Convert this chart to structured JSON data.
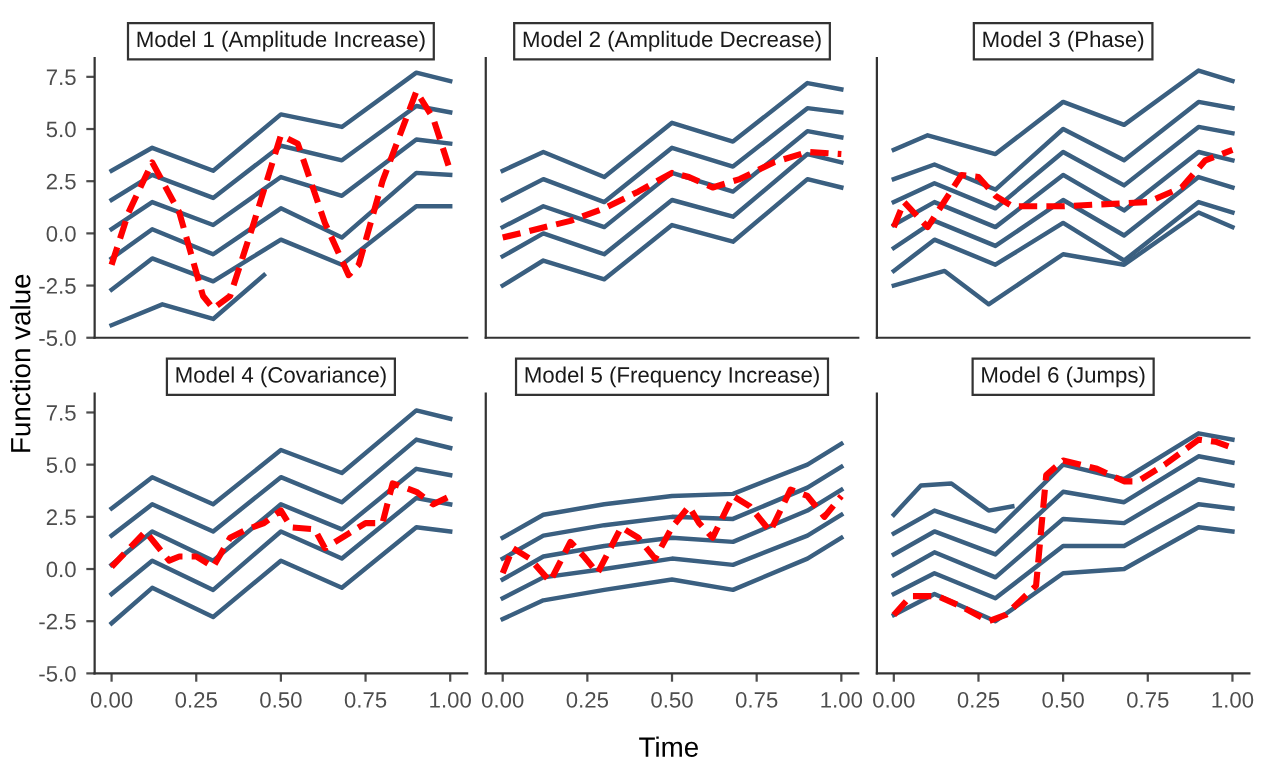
{
  "chart_data": [
    {
      "type": "line",
      "title": "Model 1 (Amplitude Increase)",
      "ylabel": "Function value",
      "tick_labels": "y",
      "x": [
        0,
        0.12,
        0.3,
        0.5,
        0.68,
        0.9,
        1.0
      ],
      "xlim": [
        -0.05,
        1.05
      ],
      "ylim": [
        -5.0,
        8.4
      ],
      "yticks": [
        {
          "value": -5,
          "label": "-5.0"
        },
        {
          "value": -2.5,
          "label": "-2.5"
        },
        {
          "value": 0,
          "label": "0.0"
        },
        {
          "value": 2.5,
          "label": "2.5"
        },
        {
          "value": 5,
          "label": "5.0"
        },
        {
          "value": 7.5,
          "label": "7.5"
        }
      ],
      "grid": false,
      "legend": false,
      "series": [
        {
          "color": "#3a5f80",
          "values": [
            3.0,
            4.1,
            3.0,
            5.7,
            5.1,
            7.7,
            7.3
          ]
        },
        {
          "color": "#3a5f80",
          "values": [
            1.6,
            2.8,
            1.7,
            4.2,
            3.5,
            6.1,
            5.8
          ]
        },
        {
          "color": "#3a5f80",
          "values": [
            0.2,
            1.5,
            0.4,
            2.7,
            1.8,
            4.5,
            4.3
          ]
        },
        {
          "color": "#3a5f80",
          "values": [
            -1.2,
            0.2,
            -1.0,
            1.2,
            -0.2,
            2.9,
            2.8
          ]
        },
        {
          "color": "#3a5f80",
          "values": [
            -2.7,
            -1.2,
            -2.3,
            -0.3,
            -1.5,
            1.3,
            1.3
          ]
        },
        {
          "color": "#3a5f80",
          "x": [
            0,
            0.15,
            0.3,
            0.45
          ],
          "values": [
            -4.4,
            -3.4,
            -4.1,
            -2.0
          ]
        },
        {
          "color": "#ff0000",
          "line_style": "dashed",
          "x": [
            0,
            0.05,
            0.12,
            0.2,
            0.27,
            0.3,
            0.35,
            0.42,
            0.5,
            0.55,
            0.63,
            0.7,
            0.73,
            0.8,
            0.9,
            0.95,
            1.0
          ],
          "values": [
            -1.5,
            1.0,
            3.4,
            1.0,
            -3.0,
            -3.6,
            -3.0,
            0.5,
            4.7,
            4.3,
            0.5,
            -2.0,
            -1.5,
            2.5,
            6.8,
            5.5,
            3.0
          ]
        }
      ]
    },
    {
      "type": "line",
      "title": "Model 2 (Amplitude Decrease)",
      "tick_labels": false,
      "x": [
        0,
        0.12,
        0.3,
        0.5,
        0.68,
        0.9,
        1.0
      ],
      "xlim": [
        -0.05,
        1.05
      ],
      "ylim": [
        -5.0,
        8.4
      ],
      "grid": false,
      "legend": false,
      "series": [
        {
          "color": "#3a5f80",
          "values": [
            3.0,
            3.9,
            2.7,
            5.3,
            4.4,
            7.2,
            6.9
          ]
        },
        {
          "color": "#3a5f80",
          "values": [
            1.6,
            2.6,
            1.5,
            4.1,
            3.2,
            6.0,
            5.8
          ]
        },
        {
          "color": "#3a5f80",
          "values": [
            0.3,
            1.3,
            0.3,
            2.9,
            2.0,
            4.9,
            4.6
          ]
        },
        {
          "color": "#3a5f80",
          "values": [
            -1.1,
            0.0,
            -1.0,
            1.6,
            0.8,
            3.8,
            3.4
          ]
        },
        {
          "color": "#3a5f80",
          "values": [
            -2.5,
            -1.3,
            -2.2,
            0.4,
            -0.4,
            2.6,
            2.2
          ]
        },
        {
          "color": "#ff0000",
          "line_style": "dashed",
          "x": [
            0,
            0.2,
            0.3,
            0.4,
            0.5,
            0.55,
            0.62,
            0.7,
            0.8,
            0.9,
            1.0
          ],
          "values": [
            -0.2,
            0.6,
            1.2,
            2.0,
            2.9,
            2.7,
            2.2,
            2.6,
            3.4,
            3.9,
            3.8
          ]
        }
      ]
    },
    {
      "type": "line",
      "title": "Model 3 (Phase)",
      "tick_labels": false,
      "x": [
        0,
        0.12,
        0.3,
        0.5,
        0.68,
        0.9,
        1.0
      ],
      "xlim": [
        -0.05,
        1.05
      ],
      "ylim": [
        -5.0,
        8.4
      ],
      "grid": false,
      "legend": false,
      "series": [
        {
          "color": "#3a5f80",
          "values": [
            2.6,
            3.3,
            2.1,
            5.0,
            3.5,
            6.3,
            6.0
          ]
        },
        {
          "color": "#3a5f80",
          "values": [
            1.5,
            2.4,
            1.2,
            3.9,
            2.3,
            5.1,
            4.8
          ]
        },
        {
          "color": "#3a5f80",
          "values": [
            0.4,
            1.5,
            0.3,
            2.8,
            1.1,
            3.9,
            3.5
          ]
        },
        {
          "color": "#3a5f80",
          "values": [
            -0.7,
            0.6,
            -0.6,
            1.6,
            -0.1,
            2.7,
            2.2
          ]
        },
        {
          "color": "#3a5f80",
          "values": [
            -1.8,
            -0.3,
            -1.5,
            0.5,
            -1.3,
            1.5,
            1.0
          ]
        },
        {
          "color": "#3a5f80",
          "x": [
            0,
            0.1,
            0.3,
            0.5,
            0.68,
            0.9,
            1.0
          ],
          "values": [
            4.0,
            4.7,
            3.8,
            6.3,
            5.2,
            7.8,
            7.3
          ]
        },
        {
          "color": "#3a5f80",
          "x": [
            0,
            0.15,
            0.28,
            0.5,
            0.68,
            0.9,
            1.0
          ],
          "values": [
            -2.5,
            -1.8,
            -3.4,
            -1.0,
            -1.5,
            1.0,
            0.3
          ]
        },
        {
          "color": "#ff0000",
          "line_style": "dashed",
          "x": [
            0,
            0.03,
            0.1,
            0.2,
            0.25,
            0.3,
            0.35,
            0.5,
            0.75,
            0.85,
            0.92,
            1.0
          ],
          "values": [
            0.3,
            1.5,
            0.3,
            2.8,
            2.7,
            1.8,
            1.3,
            1.3,
            1.5,
            2.2,
            3.5,
            4.0
          ]
        }
      ]
    },
    {
      "type": "line",
      "title": "Model 4 (Covariance)",
      "x": [
        0,
        0.12,
        0.3,
        0.5,
        0.68,
        0.9,
        1.0
      ],
      "xlim": [
        -0.05,
        1.05
      ],
      "ylim": [
        -5.0,
        8.4
      ],
      "xticks": [
        {
          "value": 0,
          "label": "0.00"
        },
        {
          "value": 0.25,
          "label": "0.25"
        },
        {
          "value": 0.5,
          "label": "0.50"
        },
        {
          "value": 0.75,
          "label": "0.75"
        },
        {
          "value": 1,
          "label": "1.00"
        }
      ],
      "yticks": [
        {
          "value": -5,
          "label": "-5.0"
        },
        {
          "value": -2.5,
          "label": "-2.5"
        },
        {
          "value": 0,
          "label": "0.0"
        },
        {
          "value": 2.5,
          "label": "2.5"
        },
        {
          "value": 5,
          "label": "5.0"
        },
        {
          "value": 7.5,
          "label": "7.5"
        }
      ],
      "grid": false,
      "legend": false,
      "series": [
        {
          "color": "#3a5f80",
          "values": [
            2.9,
            4.4,
            3.1,
            5.7,
            4.6,
            7.6,
            7.2
          ]
        },
        {
          "color": "#3a5f80",
          "values": [
            1.6,
            3.1,
            1.8,
            4.4,
            3.2,
            6.2,
            5.8
          ]
        },
        {
          "color": "#3a5f80",
          "values": [
            0.2,
            1.8,
            0.4,
            3.1,
            1.9,
            4.8,
            4.5
          ]
        },
        {
          "color": "#3a5f80",
          "values": [
            -1.2,
            0.4,
            -1.0,
            1.8,
            0.5,
            3.4,
            3.1
          ]
        },
        {
          "color": "#3a5f80",
          "values": [
            -2.6,
            -0.9,
            -2.3,
            0.4,
            -0.9,
            2.0,
            1.8
          ]
        },
        {
          "color": "#ff0000",
          "line_style": "dashed",
          "x": [
            0,
            0.1,
            0.13,
            0.17,
            0.2,
            0.25,
            0.3,
            0.35,
            0.4,
            0.45,
            0.5,
            0.53,
            0.6,
            0.63,
            0.7,
            0.75,
            0.8,
            0.83,
            0.9,
            0.95,
            1.0
          ],
          "values": [
            0.1,
            1.8,
            1.2,
            0.4,
            0.6,
            0.6,
            0.1,
            1.5,
            1.9,
            2.2,
            2.8,
            2.0,
            1.9,
            1.0,
            1.7,
            2.2,
            2.2,
            4.1,
            3.7,
            3.1,
            3.5
          ]
        }
      ]
    },
    {
      "type": "line",
      "title": "Model 5 (Frequency Increase)",
      "xlabel": "Time",
      "tick_labels": "x",
      "x": [
        0,
        0.12,
        0.3,
        0.5,
        0.68,
        0.9,
        1.0
      ],
      "xlim": [
        -0.05,
        1.05
      ],
      "ylim": [
        -5.0,
        8.4
      ],
      "xticks": [
        {
          "value": 0,
          "label": "0.00"
        },
        {
          "value": 0.25,
          "label": "0.25"
        },
        {
          "value": 0.5,
          "label": "0.50"
        },
        {
          "value": 0.75,
          "label": "0.75"
        },
        {
          "value": 1,
          "label": "1.00"
        }
      ],
      "grid": false,
      "legend": false,
      "series": [
        {
          "color": "#3a5f80",
          "values": [
            1.5,
            2.6,
            3.1,
            3.5,
            3.6,
            5.0,
            6.0
          ]
        },
        {
          "color": "#3a5f80",
          "values": [
            0.5,
            1.6,
            2.1,
            2.5,
            2.4,
            3.9,
            4.9
          ]
        },
        {
          "color": "#3a5f80",
          "values": [
            -0.5,
            0.6,
            1.1,
            1.5,
            1.3,
            2.8,
            3.8
          ]
        },
        {
          "color": "#3a5f80",
          "values": [
            -1.4,
            -0.4,
            0.0,
            0.5,
            0.2,
            1.6,
            2.6
          ]
        },
        {
          "color": "#3a5f80",
          "values": [
            -2.4,
            -1.5,
            -1.0,
            -0.5,
            -1.0,
            0.5,
            1.5
          ]
        },
        {
          "color": "#ff0000",
          "line_style": "dashed",
          "x": [
            0,
            0.03,
            0.08,
            0.14,
            0.2,
            0.24,
            0.28,
            0.35,
            0.4,
            0.45,
            0.5,
            0.55,
            0.58,
            0.62,
            0.68,
            0.73,
            0.79,
            0.85,
            0.9,
            0.95,
            1.0
          ],
          "values": [
            -0.2,
            1.0,
            0.5,
            -0.6,
            1.3,
            0.6,
            -0.2,
            2.0,
            1.5,
            0.5,
            2.0,
            3.0,
            2.2,
            1.5,
            3.5,
            3.0,
            1.8,
            3.8,
            3.5,
            2.5,
            3.5
          ]
        }
      ]
    },
    {
      "type": "line",
      "title": "Model 6 (Jumps)",
      "tick_labels": "x",
      "x": [
        0,
        0.12,
        0.3,
        0.5,
        0.68,
        0.9,
        1.0
      ],
      "xlim": [
        -0.05,
        1.05
      ],
      "ylim": [
        -5.0,
        8.4
      ],
      "xticks": [
        {
          "value": 0,
          "label": "0.00"
        },
        {
          "value": 0.25,
          "label": "0.25"
        },
        {
          "value": 0.5,
          "label": "0.50"
        },
        {
          "value": 0.75,
          "label": "0.75"
        },
        {
          "value": 1,
          "label": "1.00"
        }
      ],
      "grid": false,
      "legend": false,
      "series": [
        {
          "color": "#3a5f80",
          "values": [
            1.7,
            2.8,
            1.8,
            5.0,
            4.3,
            6.5,
            6.2
          ]
        },
        {
          "color": "#3a5f80",
          "values": [
            0.7,
            1.8,
            0.7,
            3.7,
            3.2,
            5.4,
            5.1
          ]
        },
        {
          "color": "#3a5f80",
          "values": [
            -0.3,
            0.8,
            -0.4,
            2.4,
            2.2,
            4.3,
            4.0
          ]
        },
        {
          "color": "#3a5f80",
          "values": [
            -1.2,
            -0.2,
            -1.4,
            1.1,
            1.1,
            3.1,
            2.9
          ]
        },
        {
          "color": "#3a5f80",
          "values": [
            -2.2,
            -1.2,
            -2.5,
            -0.2,
            0.0,
            2.0,
            1.8
          ]
        },
        {
          "color": "#3a5f80",
          "x": [
            0,
            0.08,
            0.17,
            0.28,
            0.35
          ],
          "values": [
            2.6,
            4.0,
            4.1,
            2.8,
            3.0
          ]
        },
        {
          "color": "#ff0000",
          "line_style": "dashed",
          "x": [
            0,
            0.05,
            0.13,
            0.2,
            0.28,
            0.33,
            0.42,
            0.45,
            0.5,
            0.6,
            0.68,
            0.72,
            0.8,
            0.9,
            0.95,
            1.0
          ],
          "values": [
            -2.2,
            -1.3,
            -1.3,
            -1.8,
            -2.5,
            -2.2,
            -0.8,
            4.5,
            5.2,
            4.8,
            4.2,
            4.2,
            5.0,
            6.2,
            6.1,
            5.8
          ]
        }
      ]
    }
  ]
}
